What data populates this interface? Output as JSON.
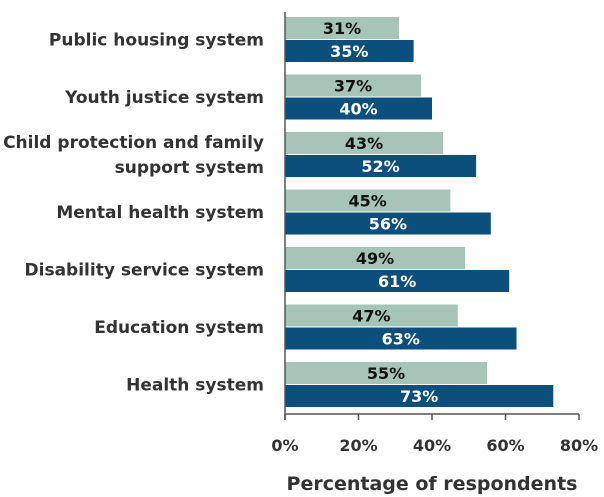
{
  "chart_data": {
    "type": "bar",
    "orientation": "horizontal",
    "categories": [
      [
        "Public housing system"
      ],
      [
        "Youth justice system"
      ],
      [
        "Child protection and family",
        "support system"
      ],
      [
        "Mental health system"
      ],
      [
        "Disability service system"
      ],
      [
        "Education system"
      ],
      [
        "Health system"
      ]
    ],
    "series": [
      {
        "values": [
          31,
          37,
          43,
          45,
          49,
          47,
          55
        ],
        "color": "#a6c4b8",
        "label_color": "#111111"
      },
      {
        "values": [
          35,
          40,
          52,
          56,
          61,
          63,
          73
        ],
        "color": "#0d4f7c",
        "label_color": "#ffffff"
      }
    ],
    "value_suffix": "%",
    "xlim": [
      0,
      80
    ],
    "xticks": [
      "0%",
      "20%",
      "40%",
      "60%",
      "80%"
    ],
    "xlabel": "Percentage of respondents",
    "grid": false,
    "legend": "none"
  }
}
